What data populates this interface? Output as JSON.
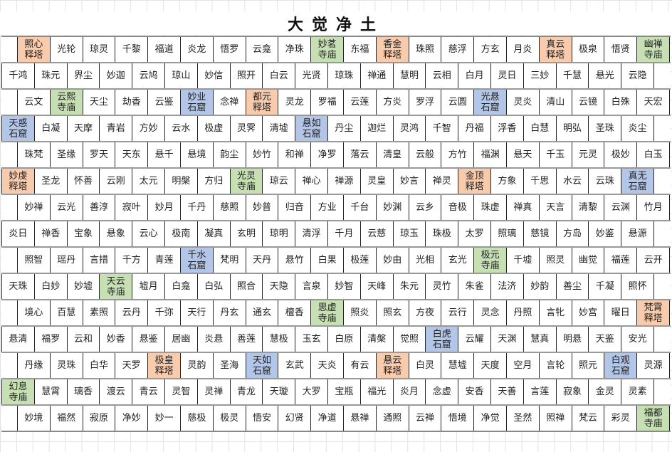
{
  "title": "大觉净土",
  "colors": {
    "pagoda": "#f8cbad",
    "temple": "#c6e0b4",
    "grotto": "#b4c6e7"
  },
  "rows": [
    [
      "照心释塔",
      "光轮",
      "琼灵",
      "千黎",
      "福道",
      "炎龙",
      "悟罗",
      "云龛",
      "净珠",
      "妙茗寺庙",
      "东福",
      "香金释塔",
      "珠照",
      "慈浮",
      "方玄",
      "月炎",
      "真云释塔",
      "极泉",
      "悟贤",
      "幽禅寺庙"
    ],
    [
      "千鸿",
      "珠元",
      "界尘",
      "妙迦",
      "云鸠",
      "琼山",
      "妙信",
      "照开",
      "白云",
      "光贤",
      "琼珠",
      "禅通",
      "慧明",
      "云相",
      "白月",
      "灵日",
      "三妙",
      "千慧",
      "悬光",
      "云隐"
    ],
    [
      "云文",
      "云熙寺庙",
      "天尘",
      "劫香",
      "云鉴",
      "妙业石窟",
      "念禅",
      "都元释塔",
      "灵龙",
      "罗福",
      "云莲",
      "方炎",
      "罗浮",
      "云圆",
      "光悬石窟",
      "灵炎",
      "清山",
      "云镜",
      "白殊",
      "天宏"
    ],
    [
      "天惑石窟",
      "白凝",
      "天摩",
      "青岩",
      "方妙",
      "云水",
      "极虚",
      "灵霁",
      "清墟",
      "悬如石窟",
      "丹尘",
      "迦烂",
      "灵鸿",
      "千智",
      "丹福",
      "浮香",
      "白慧",
      "明弘",
      "圣珠",
      "炎尘"
    ],
    [
      "珠梵",
      "圣缘",
      "罗天",
      "天东",
      "悬千",
      "悬境",
      "韵尘",
      "妙竹",
      "和禅",
      "净罗",
      "落云",
      "清皇",
      "云般",
      "方竹",
      "福渊",
      "悬天",
      "千玉",
      "元灵",
      "极妙",
      "白玉"
    ],
    [
      "妙虔释塔",
      "圣龙",
      "怀善",
      "云刚",
      "太元",
      "明槃",
      "方归",
      "光灵寺庙",
      "琼云",
      "禅心",
      "禅源",
      "灵皇",
      "妙言",
      "禅灵",
      "金顶释塔",
      "方象",
      "千思",
      "水云",
      "云珠",
      "真无石窟"
    ],
    [
      "妙禅",
      "云光",
      "善淳",
      "寂叶",
      "妙月",
      "千丹",
      "慈照",
      "妙普",
      "归音",
      "方业",
      "千台",
      "妙渊",
      "云乡",
      "音极",
      "珠虚",
      "禅真",
      "天言",
      "清黎",
      "云渊",
      "竹月"
    ],
    [
      "炎日",
      "禅香",
      "宝象",
      "悬象",
      "云心",
      "极南",
      "凝真",
      "玄明",
      "琼明",
      "清浮",
      "千月",
      "云慈",
      "琼玉",
      "珠极",
      "太罗",
      "照璃",
      "慈镜",
      "方岛",
      "妙鉴",
      "悬源"
    ],
    [
      "照智",
      "瑶丹",
      "言措",
      "千方",
      "青莲",
      "千水石窟",
      "梵明",
      "天丹",
      "悬竹",
      "白果",
      "极莲",
      "妙由",
      "光相",
      "玄光",
      "极元寺庙",
      "千墟",
      "照灵",
      "幽觉",
      "福莲",
      "云开"
    ],
    [
      "天珠",
      "白妙",
      "妙墟",
      "天云寺庙",
      "墟月",
      "白龛",
      "白弘",
      "照合",
      "天隐",
      "言泉",
      "妙智",
      "天峰",
      "朱元",
      "灵竹",
      "朱雀",
      "法济",
      "妙韵",
      "善尘",
      "千凝",
      "照怀"
    ],
    [
      "境心",
      "百慧",
      "素照",
      "云丹",
      "千弥",
      "天行",
      "丹玄",
      "通玄",
      "檀香",
      "思虚寺庙",
      "照炎",
      "照玄",
      "方夜",
      "云行",
      "灵念",
      "丹照",
      "言牝",
      "妙宫",
      "曜日",
      "梵霄释塔"
    ],
    [
      "悬清",
      "福罗",
      "云和",
      "妙香",
      "悬鉴",
      "居幽",
      "炎悬",
      "善莲",
      "慧极",
      "玉玄",
      "白原",
      "清槃",
      "觉照",
      "白虎石窟",
      "云耀",
      "天渊",
      "慧真",
      "明悬",
      "天鉴",
      "安光"
    ],
    [
      "丹缘",
      "灵珠",
      "白华",
      "天罗",
      "极皇释塔",
      "灵韵",
      "圣海",
      "天如石窟",
      "玄武",
      "天炎",
      "有云",
      "悬云释塔",
      "白灵",
      "慧墟",
      "天度",
      "空月",
      "言轮",
      "照元",
      "白观石窟",
      "灵源"
    ],
    [
      "幻息寺庙",
      "慧霄",
      "璃香",
      "渡云",
      "青云",
      "灵智",
      "灵禅",
      "青龙",
      "天璇",
      "大罗",
      "宝瓶",
      "福光",
      "炎月",
      "念虚",
      "安香",
      "天善",
      "言莲",
      "寂象",
      "金灵",
      "灵素"
    ],
    [
      "妙境",
      "福然",
      "寂原",
      "净妙",
      "妙一",
      "慈极",
      "极灵",
      "悟安",
      "幻贤",
      "净道",
      "悬禅",
      "通照",
      "云禅",
      "悟境",
      "净觉",
      "圣然",
      "照禅",
      "梵云",
      "彩灵",
      "福都寺庙"
    ]
  ]
}
